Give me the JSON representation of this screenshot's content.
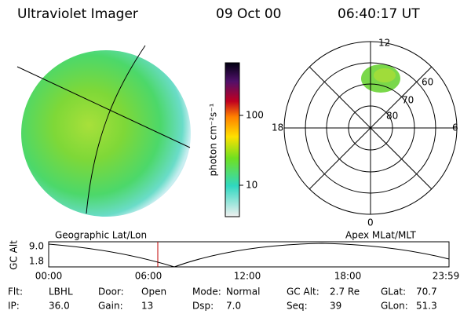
{
  "header": {
    "instrument": "Ultraviolet Imager",
    "date": "09 Oct 00",
    "time": "06:40:17 UT"
  },
  "colorbar": {
    "unit": "photon cm⁻²s⁻¹",
    "ticks": [
      "100",
      "10"
    ]
  },
  "polar": {
    "mlt_labels": [
      "12",
      "18",
      "6",
      "0"
    ],
    "lat_labels": [
      "60",
      "70",
      "80"
    ]
  },
  "strip": {
    "left_title": "Geographic Lat/Lon",
    "right_title": "Apex MLat/MLT",
    "y_title": "GC Alt",
    "y_labels": [
      "9.0",
      "1.8"
    ],
    "x_labels": [
      "00:00",
      "06:00",
      "12:00",
      "18:00",
      "23:59"
    ]
  },
  "info": [
    [
      {
        "label": "Flt:",
        "value": "LBHL"
      },
      {
        "label": "Door:",
        "value": "Open"
      },
      {
        "label": "Mode:",
        "value": "Normal"
      },
      {
        "label": "GC Alt:",
        "value": "2.7 Re"
      },
      {
        "label": "GLat:",
        "value": "70.7"
      }
    ],
    [
      {
        "label": "IP:",
        "value": "36.0"
      },
      {
        "label": "Gain:",
        "value": "13"
      },
      {
        "label": "Dsp:",
        "value": "7.0"
      },
      {
        "label": "Seq:",
        "value": "39"
      },
      {
        "label": "GLon:",
        "value": "51.3"
      }
    ]
  ]
}
